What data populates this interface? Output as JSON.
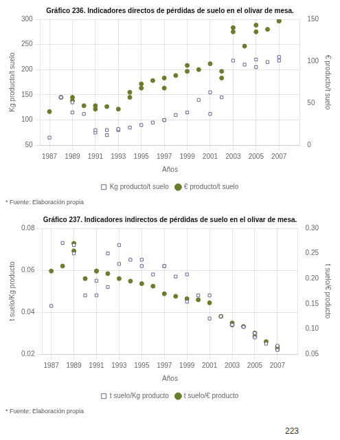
{
  "page_number": "223",
  "chart_data": [
    {
      "type": "scatter",
      "title": "Gráfico 236. Indicadores directos de pérdidas de suelo en el olivar de mesa.",
      "x_label": "Años",
      "y_label": "Kg producto/t suelo",
      "y2_label": "€ producto/t suelo",
      "annotations": [
        "* Fuente: Elaboración propia"
      ],
      "xlim": [
        1986.2,
        2008.8
      ],
      "xticks": [
        1987,
        1989,
        1991,
        1993,
        1995,
        1997,
        1999,
        2001,
        2003,
        2005,
        2007
      ],
      "ylim": [
        50,
        300
      ],
      "yticks": [
        50,
        100,
        150,
        200,
        250,
        300
      ],
      "y2lim": [
        0,
        150
      ],
      "y2ticks": [
        0,
        50,
        100,
        150
      ],
      "grid": true,
      "legend": "bottom",
      "series": [
        {
          "name": "Kg producto/t suelo",
          "color": "#666699",
          "marker": "square",
          "x": [
            1987,
            1988,
            1989,
            1989,
            1990,
            1991,
            1991,
            1992,
            1992,
            1993,
            1993,
            1994,
            1995,
            1996,
            1997,
            1997,
            1998,
            1999,
            2000,
            2001,
            2001,
            2002,
            2003,
            2004,
            2005,
            2005,
            2006,
            2007,
            2007
          ],
          "values": [
            65,
            145,
            135,
            115,
            112,
            75,
            80,
            70,
            80,
            80,
            82,
            85,
            90,
            95,
            100,
            100,
            110,
            115,
            140,
            155,
            112,
            145,
            218,
            210,
            205,
            220,
            215,
            225,
            218
          ]
        },
        {
          "name": "€ producto/t suelo",
          "color": "#6b7c2e",
          "marker": "circle",
          "axis": "y2",
          "x": [
            1987,
            1988,
            1989,
            1989,
            1990,
            1991,
            1991,
            1992,
            1993,
            1994,
            1994,
            1995,
            1995,
            1996,
            1997,
            1997,
            1998,
            1999,
            1999,
            2000,
            2001,
            2002,
            2002,
            2003,
            2003,
            2004,
            2005,
            2005,
            2006,
            2007,
            2007
          ],
          "values": [
            40,
            57,
            57,
            53,
            47,
            43,
            47,
            46,
            43,
            57,
            63,
            68,
            73,
            77,
            80,
            68,
            83,
            88,
            95,
            90,
            97,
            80,
            88,
            140,
            135,
            118,
            135,
            143,
            138,
            148,
            148
          ]
        }
      ]
    },
    {
      "type": "scatter",
      "title": "Gráfico 237. Indicadores indirectos de pérdidas de suelo en el olivar de mesa.",
      "x_label": "Años",
      "y_label": "t suelo/Kg producto",
      "y2_label": "t suelo/€ producto",
      "annotations": [
        "* Fuente: Elaboración propia"
      ],
      "xlim": [
        1986.2,
        2008.8
      ],
      "xticks": [
        1987,
        1989,
        1991,
        1993,
        1995,
        1997,
        1999,
        2001,
        2003,
        2005,
        2007
      ],
      "ylim": [
        0.02,
        0.08
      ],
      "yticks": [
        0.02,
        0.04,
        0.06,
        0.08
      ],
      "y2lim": [
        0.05,
        0.3
      ],
      "y2ticks": [
        0.05,
        {
          "value": 0.1,
          "label": "0.10"
        },
        0.15,
        {
          "value": 0.2,
          "label": "0.20"
        },
        0.25,
        {
          "value": 0.3,
          "label": "0.30"
        }
      ],
      "grid": true,
      "legend": "bottom",
      "series": [
        {
          "name": "t suelo/Kg producto",
          "color": "#666699",
          "marker": "square",
          "x": [
            1987,
            1988,
            1989,
            1989,
            1990,
            1991,
            1991,
            1992,
            1992,
            1993,
            1993,
            1994,
            1995,
            1995,
            1996,
            1997,
            1997,
            1998,
            1999,
            1999,
            2000,
            2001,
            2001,
            2002,
            2003,
            2004,
            2005,
            2005,
            2006,
            2007,
            2007
          ],
          "values": [
            0.043,
            0.073,
            0.072,
            0.068,
            0.048,
            0.055,
            0.048,
            0.052,
            0.068,
            0.063,
            0.072,
            0.065,
            0.065,
            0.062,
            0.058,
            0.062,
            0.062,
            0.057,
            0.058,
            0.045,
            0.048,
            0.048,
            0.037,
            0.038,
            0.034,
            0.033,
            0.03,
            0.028,
            0.025,
            0.024,
            0.022
          ]
        },
        {
          "name": "t suelo/€ producto",
          "color": "#6b7c2e",
          "marker": "circle",
          "axis": "y2",
          "x": [
            1987,
            1988,
            1989,
            1989,
            1990,
            1991,
            1991,
            1992,
            1993,
            1994,
            1995,
            1996,
            1997,
            1998,
            1999,
            2000,
            2001,
            2002,
            2003,
            2003,
            2004,
            2005,
            2005,
            2006,
            2007,
            2007
          ],
          "values": [
            0.215,
            0.225,
            0.255,
            0.27,
            0.2,
            0.215,
            0.215,
            0.21,
            0.2,
            0.195,
            0.19,
            0.185,
            0.17,
            0.165,
            0.16,
            0.158,
            0.152,
            0.125,
            0.108,
            0.112,
            0.105,
            0.092,
            0.085,
            0.075,
            0.065,
            0.06
          ]
        }
      ]
    }
  ]
}
